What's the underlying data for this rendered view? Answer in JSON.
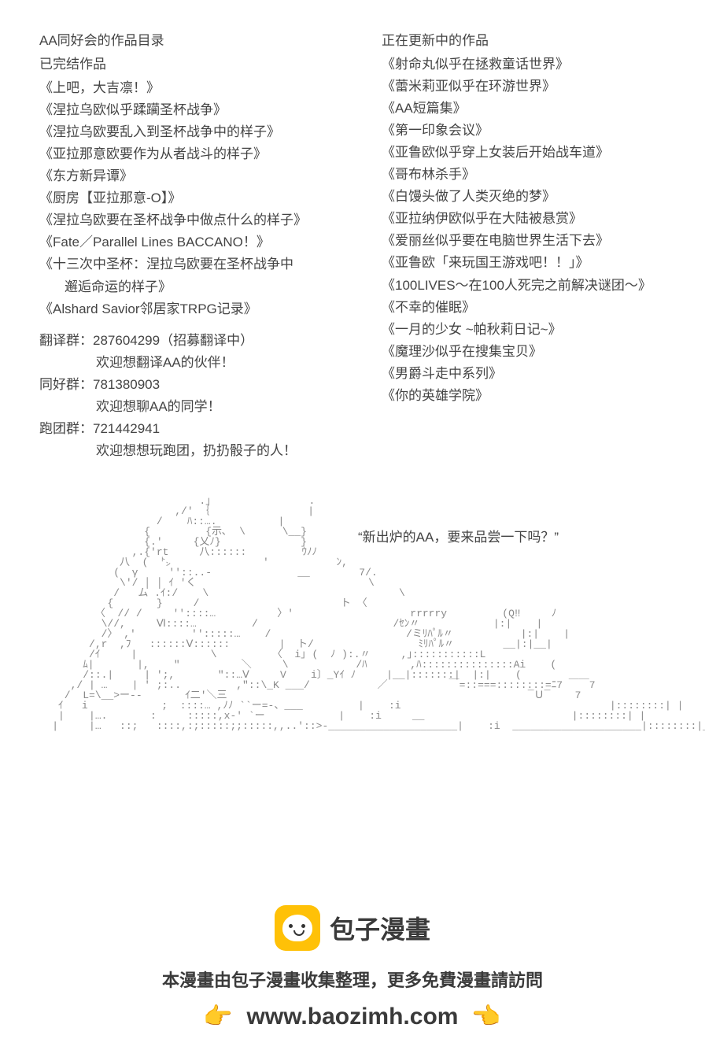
{
  "left": {
    "title": "AA同好会的作品目录",
    "completed_header": "已完结作品",
    "completed": [
      "《上吧，大吉凛！》",
      "《涅拉乌欧似乎蹂躏圣杯战争》",
      "《涅拉乌欧要乱入到圣杯战争中的样子》",
      "《亚拉那意欧要作为从者战斗的样子》",
      "《东方新异谭》",
      "《厨房【亚拉那意-O】》",
      "《涅拉乌欧要在圣杯战争中做点什么的样子》",
      "《Fate／Parallel Lines BACCANO！》",
      "《十三次中圣杯：涅拉乌欧要在圣杯战争中",
      "邂逅命运的样子》",
      "《Alshard Savior邻居家TRPG记录》"
    ],
    "groups": [
      {
        "label": "翻译群：287604299（招募翻译中）",
        "sub": "欢迎想翻译AA的伙伴！"
      },
      {
        "label": "同好群：781380903",
        "sub": "欢迎想聊AA的同学！"
      },
      {
        "label": "跑团群：721442941",
        "sub": "欢迎想想玩跑团，扔扔骰子的人！"
      }
    ]
  },
  "right": {
    "updating_header": "正在更新中的作品",
    "updating": [
      "《射命丸似乎在拯救童话世界》",
      "《蕾米莉亚似乎在环游世界》",
      "《AA短篇集》",
      "《第一印象会议》",
      "《亚鲁欧似乎穿上女装后开始战车道》",
      "《哥布林杀手》",
      "《白馒头做了人类灭绝的梦》",
      "《亚拉纳伊欧似乎在大陆被悬赏》",
      "《爱丽丝似乎要在电脑世界生活下去》",
      "《亚鲁欧「来玩国王游戏吧！！」》",
      "《100LIVES～在100人死完之前解决谜团～》",
      "《不幸的催眠》",
      "《一月的少女 ~帕秋莉日记~》",
      "《魔理沙似乎在搜集宝贝》",
      "《男爵斗走中系列》",
      "《你的英雄学院》"
    ]
  },
  "quote": "“新出炉的AA，要来品尝一下吗？”",
  "ascii": "                            .｣                .\n                        ,/' ｛                |\n                     /    ﾊ::….          |\n                   {         {示､  \\      \\__}\n                   {.′     {乂ﾉ}             }\n                 ,.{′rt     八::::::         ｳﾉﾉ\n               八  (  ㌧               '           ﾝ,\n              (  γ     ''::..-              __        7/.\n               \\′/ │ │ ｲ 'く                            \\\n              /   ム .ｲ:/    \\                               \\\n             {       }     /                       ト 〈\n           〈  // /     ''::::…          〉′                   rrrrry         (Q‼     ﾉ\n            \\//,     Ⅵ::::…         /                      /ｾﾝ〃            |:|    |\n            /〉 ,′         '':::::…    /                      /ミﾘﾊﾟﾙ〃           |:|    |\n          /,r  ,ﾌ   ::::::Ⅴ::::::        |  ト/                 ﾐﾘﾊﾟﾙ〃        __|:|__|\n          /ｲ     |            \\         〈  i｣ (  ﾉ ):.〃     ,｣:::::::::::L\n         ﾑ|       |,    \"          ＼     \\           /ﾊ       ,ﾊ:::::::::::::::Ai    (\n         /::.|     | ';,       \"::…Ⅴ     V    i〕_Yｲ ﾉ     |__|:::::::|  |:|    (\n       ,/ | …    | ' ;:..         ,\"::\\_K ___/           ／          ￣=::===::::::::=ﾆ7 ￣￣7\n      /  L=\\__>ー--       ｲ二'＼三                                                 ¯Ｕ¯    7\n     ｲ   i            ;  ::::… ,ﾉﾉ ``ー=-、___         |    :i                                  |::::::::| |\n     |    |….       :     :::::,x-' `ー            |    :i     __                        |::::::::| |\n    |     |…   ::;   ::::,:;:::::;;:::::,,..'::>-_____________________|    :i  _____________________|::::::::|_|",
  "footer": {
    "logo_text": "包子漫畫",
    "desc": "本漫畫由包子漫畫收集整理，更多免費漫畫請訪問",
    "url": "www.baozimh.com",
    "emoji": "👉"
  }
}
